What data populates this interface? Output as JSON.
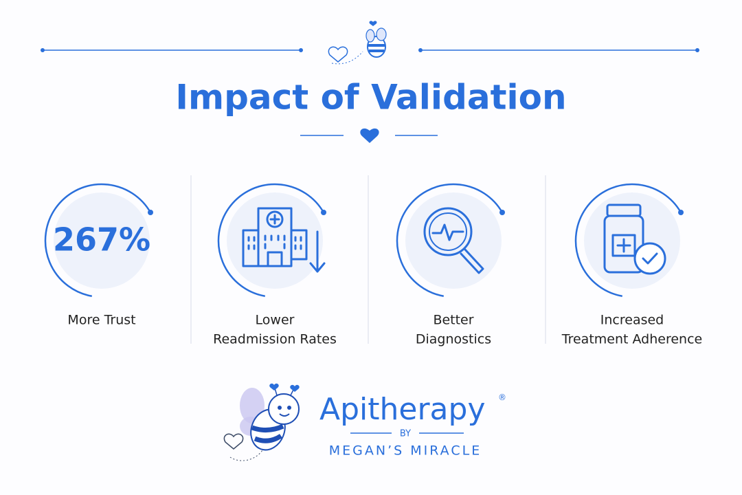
{
  "title": "Impact of Validation",
  "items": [
    {
      "stat": "267%",
      "label": [
        "More Trust"
      ]
    },
    {
      "label": [
        "Lower",
        "Readmission Rates"
      ]
    },
    {
      "label": [
        "Better",
        "Diagnostics"
      ]
    },
    {
      "label": [
        "Increased",
        "Treatment Adherence"
      ]
    }
  ],
  "brand": {
    "name": "Apitherapy",
    "mark": "®",
    "by": "BY",
    "tagline": "MEGAN’S MIRACLE"
  }
}
